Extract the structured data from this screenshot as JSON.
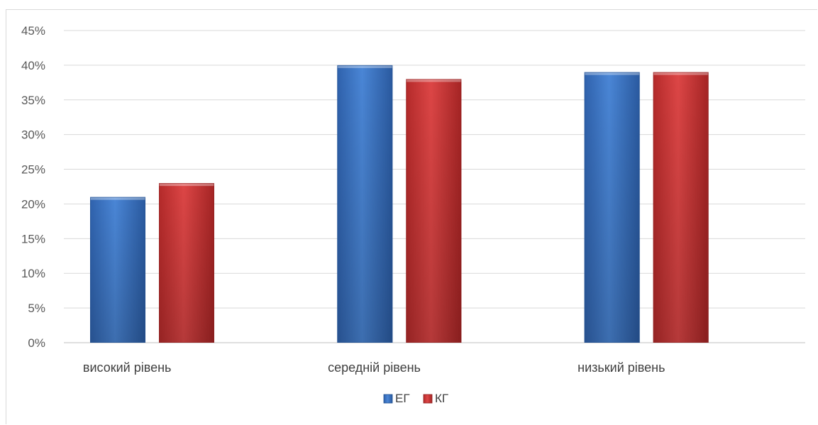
{
  "chart_data": {
    "type": "bar",
    "categories": [
      "високий рівень",
      "середній рівень",
      "низький рівень"
    ],
    "series": [
      {
        "name": "ЕГ",
        "values": [
          21,
          40,
          39
        ],
        "color": "#3a73c3"
      },
      {
        "name": "КГ",
        "values": [
          23,
          38,
          39
        ],
        "color": "#c83232"
      }
    ],
    "ylim": [
      0,
      45
    ],
    "yticks": [
      "0%",
      "5%",
      "10%",
      "15%",
      "20%",
      "25%",
      "30%",
      "35%",
      "40%",
      "45%"
    ],
    "y_tick_step": 5,
    "grid": true,
    "legend": "bottom"
  }
}
